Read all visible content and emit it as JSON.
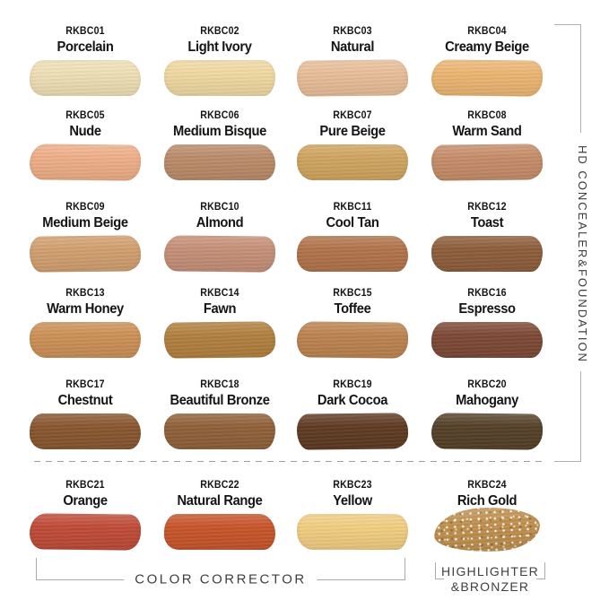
{
  "page": {
    "background": "#ffffff",
    "line_color": "#ababab"
  },
  "right_section": {
    "label": "HD CONCEALER&FOUNDATION"
  },
  "bottom_sections": {
    "color_corrector_label": "COLOR CORRECTOR",
    "highlighter_label_line1": "HIGHLIGHTER",
    "highlighter_label_line2": "&BRONZER"
  },
  "swatches": [
    {
      "code": "RKBC01",
      "name": "Porcelain",
      "color": "#EFE0B6"
    },
    {
      "code": "RKBC02",
      "name": "Light Ivory",
      "color": "#F0D9A2"
    },
    {
      "code": "RKBC03",
      "name": "Natural",
      "color": "#E9BE99"
    },
    {
      "code": "RKBC04",
      "name": "Creamy Beige",
      "color": "#ECB673"
    },
    {
      "code": "RKBC05",
      "name": "Nude",
      "color": "#EFAF88"
    },
    {
      "code": "RKBC06",
      "name": "Medium Bisque",
      "color": "#BB8C6A"
    },
    {
      "code": "RKBC07",
      "name": "Pure Beige",
      "color": "#D0A560"
    },
    {
      "code": "RKBC08",
      "name": "Warm Sand",
      "color": "#C68D69"
    },
    {
      "code": "RKBC09",
      "name": "Medium Beige",
      "color": "#D2A070"
    },
    {
      "code": "RKBC10",
      "name": "Almond",
      "color": "#C69078"
    },
    {
      "code": "RKBC11",
      "name": "Cool Tan",
      "color": "#B2744B"
    },
    {
      "code": "RKBC12",
      "name": "Toast",
      "color": "#8E5E3B"
    },
    {
      "code": "RKBC13",
      "name": "Warm Honey",
      "color": "#CD9157"
    },
    {
      "code": "RKBC14",
      "name": "Fawn",
      "color": "#B2803F"
    },
    {
      "code": "RKBC15",
      "name": "Toffee",
      "color": "#BD8450"
    },
    {
      "code": "RKBC16",
      "name": "Espresso",
      "color": "#7E4936"
    },
    {
      "code": "RKBC17",
      "name": "Chestnut",
      "color": "#8A5730"
    },
    {
      "code": "RKBC18",
      "name": "Beautiful Bronze",
      "color": "#91613A"
    },
    {
      "code": "RKBC19",
      "name": "Dark Cocoa",
      "color": "#5F3B23"
    },
    {
      "code": "RKBC20",
      "name": "Mahogany",
      "color": "#564129"
    },
    {
      "code": "RKBC21",
      "name": "Orange",
      "color": "#C04B38"
    },
    {
      "code": "RKBC22",
      "name": "Natural Range",
      "color": "#C8552B"
    },
    {
      "code": "RKBC23",
      "name": "Yellow",
      "color": "#F2CE82"
    },
    {
      "code": "RKBC24",
      "name": "Rich Gold",
      "color": "#C0904E",
      "sparkle": true
    }
  ]
}
